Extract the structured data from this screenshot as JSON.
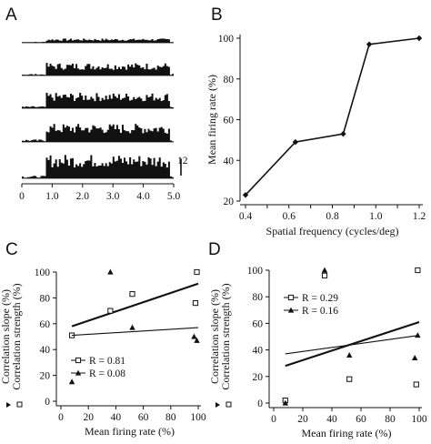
{
  "chart_data": [
    {
      "panel": "A",
      "type": "histogram",
      "title": "",
      "xlabel": "",
      "ylabel": "",
      "xlim": [
        0,
        5.0
      ],
      "x_ticks": [
        "0",
        "1.0",
        "2.0",
        "3.0",
        "4.0",
        "5.0"
      ],
      "scale_bar_label": "12",
      "scale_bar_value": 12,
      "stimulus_window": [
        0.8,
        4.9
      ],
      "series": [
        {
          "baseline": 0.5,
          "response_peak": 3
        },
        {
          "baseline": 0.8,
          "response_peak": 9
        },
        {
          "baseline": 1.0,
          "response_peak": 11
        },
        {
          "baseline": 1.2,
          "response_peak": 13
        },
        {
          "baseline": 1.2,
          "response_peak": 17
        }
      ]
    },
    {
      "panel": "B",
      "type": "line",
      "title": "",
      "xlabel": "Spatial frequency (cycles/deg)",
      "ylabel": "Mean firing rate (%)",
      "xlim": [
        0.4,
        1.2
      ],
      "ylim": [
        20,
        100
      ],
      "x_ticks": [
        "0.4",
        "0.5",
        "0.6",
        "0.7",
        "0.8",
        "0.9",
        "1.0",
        "1.1",
        "1.2"
      ],
      "y_ticks": [
        "20",
        "40",
        "60",
        "80",
        "100"
      ],
      "x": [
        0.4,
        0.63,
        0.85,
        0.97,
        1.2
      ],
      "y": [
        23,
        49,
        53,
        97,
        100
      ]
    },
    {
      "panel": "C",
      "type": "scatter",
      "title": "",
      "xlabel": "Mean firing rate (%)",
      "ylabel_top": "Correlation strength (%)",
      "ylabel_bottom": "Correlation slope (%)",
      "xlim": [
        0,
        100
      ],
      "ylim": [
        0,
        100
      ],
      "x_ticks": [
        "0",
        "20",
        "40",
        "60",
        "80",
        "100"
      ],
      "y_ticks": [
        "0",
        "20",
        "40",
        "60",
        "80",
        "100"
      ],
      "series": [
        {
          "name": "R = 0.81",
          "marker": "square",
          "points": [
            [
              8,
              51
            ],
            [
              36,
              70
            ],
            [
              52,
              83
            ],
            [
              98,
              76
            ],
            [
              99,
              100
            ]
          ],
          "fit": [
            [
              8,
              58
            ],
            [
              100,
              91
            ]
          ]
        },
        {
          "name": "R = 0.08",
          "marker": "triangle",
          "points": [
            [
              8,
              15
            ],
            [
              36,
              100
            ],
            [
              52,
              57
            ],
            [
              97,
              50
            ],
            [
              99,
              47
            ]
          ],
          "fit": [
            [
              8,
              51
            ],
            [
              100,
              57
            ]
          ]
        }
      ]
    },
    {
      "panel": "D",
      "type": "scatter",
      "title": "",
      "xlabel": "Mean firing rate (%)",
      "ylabel_top": "Correlation strength (%)",
      "ylabel_bottom": "Correlation slope (%)",
      "xlim": [
        0,
        100
      ],
      "ylim": [
        0,
        100
      ],
      "x_ticks": [
        "0",
        "20",
        "40",
        "60",
        "80",
        "100"
      ],
      "y_ticks": [
        "0",
        "20",
        "40",
        "60",
        "80",
        "100"
      ],
      "series": [
        {
          "name": "R = 0.29",
          "marker": "square",
          "points": [
            [
              8,
              2
            ],
            [
              35,
              96
            ],
            [
              52,
              18
            ],
            [
              98,
              14
            ],
            [
              99,
              100
            ]
          ],
          "fit": [
            [
              8,
              28
            ],
            [
              100,
              61
            ]
          ]
        },
        {
          "name": "R = 0.16",
          "marker": "triangle",
          "points": [
            [
              8,
              0
            ],
            [
              35,
              100
            ],
            [
              52,
              36
            ],
            [
              97,
              34
            ],
            [
              99,
              51
            ]
          ],
          "fit": [
            [
              8,
              37
            ],
            [
              100,
              51
            ]
          ]
        }
      ]
    }
  ]
}
